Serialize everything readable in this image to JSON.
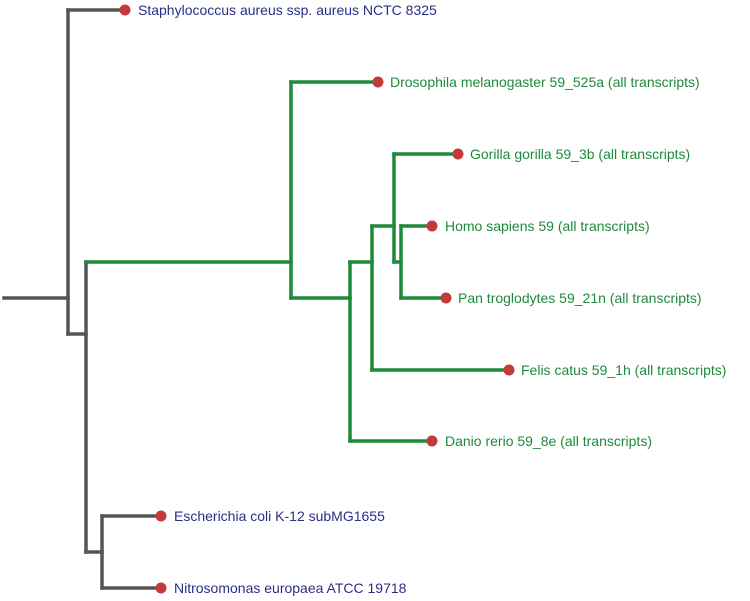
{
  "colors": {
    "outgroup_branch": "#555555",
    "clade_branch": "#1f8a3c",
    "outgroup_label": "#2a2e88",
    "clade_label": "#1f8a3c",
    "leaf_dot": "#c43a3a"
  },
  "leaves": {
    "staphylococcus": "Staphylococcus aureus ssp. aureus NCTC 8325",
    "drosophila": "Drosophila melanogaster 59_525a (all transcripts)",
    "gorilla": "Gorilla gorilla 59_3b (all transcripts)",
    "homo": "Homo sapiens 59 (all transcripts)",
    "pan": "Pan troglodytes 59_21n (all transcripts)",
    "felis": "Felis catus 59_1h (all transcripts)",
    "danio": "Danio rerio 59_8e (all transcripts)",
    "escherichia": "Escherichia coli K-12 subMG1655",
    "nitrosomonas": "Nitrosomonas europaea ATCC 19718"
  }
}
